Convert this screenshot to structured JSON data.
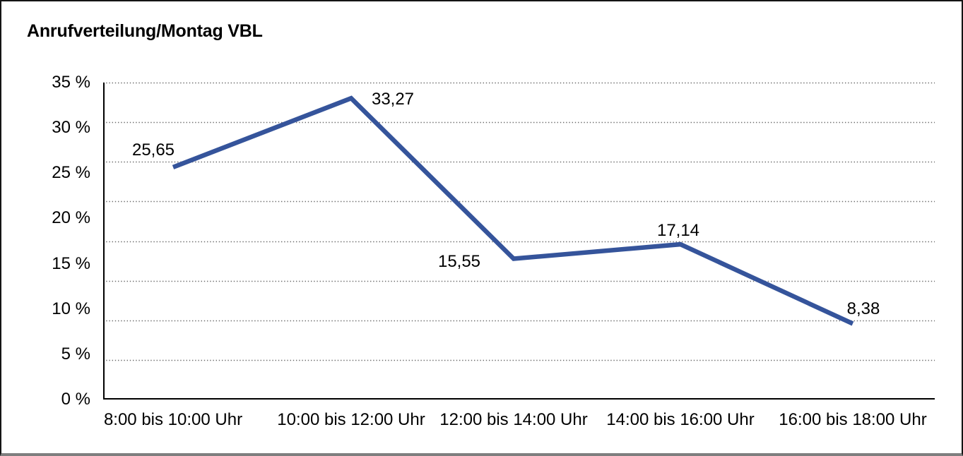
{
  "chart_data": {
    "type": "line",
    "title": "Anrufverteilung/Montag VBL",
    "categories": [
      "8:00 bis 10:00 Uhr",
      "10:00 bis 12:00 Uhr",
      "12:00 bis 14:00 Uhr",
      "14:00 bis 16:00 Uhr",
      "16:00 bis 18:00 Uhr"
    ],
    "values": [
      25.65,
      33.27,
      15.55,
      17.14,
      8.38
    ],
    "point_labels": [
      "25,65",
      "33,27",
      "15,55",
      "17,14",
      "8,38"
    ],
    "y_ticks": [
      "35 %",
      "30 %",
      "25 %",
      "20 %",
      "15 %",
      "10 %",
      "5 %",
      "0 %"
    ],
    "ylim": [
      0,
      35
    ],
    "xlabel": "",
    "ylabel": "",
    "legend": "none",
    "grid": "horizontal-dotted",
    "colors": {
      "line": "#35549B",
      "axis": "#000000",
      "gridline": "#6b6b6b",
      "text": "#000000"
    }
  }
}
